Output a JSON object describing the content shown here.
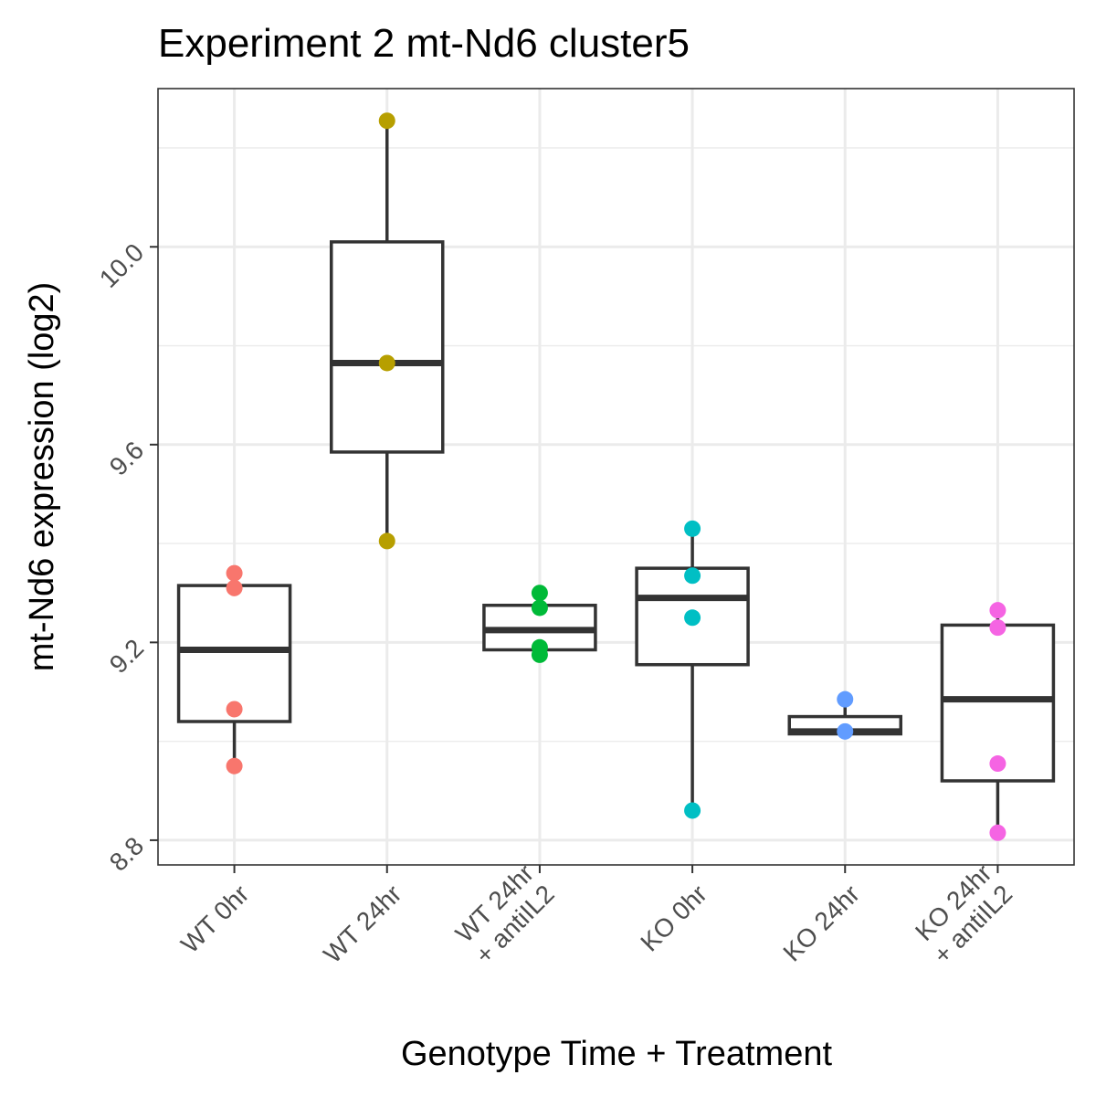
{
  "chart_data": {
    "type": "box",
    "title": "Experiment 2 mt-Nd6 cluster5",
    "xlabel": "Genotype Time + Treatment",
    "ylabel": "mt-Nd6 expression (log2)",
    "ylim": [
      8.75,
      10.32
    ],
    "yticks": [
      "8.8",
      "9.2",
      "9.6",
      "10.0"
    ],
    "ytick_values": [
      8.8,
      9.2,
      9.6,
      10.0
    ],
    "grid": true,
    "categories": [
      {
        "lines": [
          "WT 0hr"
        ],
        "color": "#F8766D",
        "box": {
          "q1": 9.04,
          "median": 9.185,
          "q3": 9.315,
          "whisker_low": 8.95,
          "whisker_high": 9.315
        },
        "points": [
          9.34,
          9.31,
          9.065,
          8.95
        ]
      },
      {
        "lines": [
          "WT 24hr"
        ],
        "color": "#B79F00",
        "box": {
          "q1": 9.585,
          "median": 9.765,
          "q3": 10.01,
          "whisker_low": 9.405,
          "whisker_high": 10.255
        },
        "points": [
          10.255,
          9.765,
          9.405
        ]
      },
      {
        "lines": [
          "WT 24hr",
          "+ antiIL2"
        ],
        "color": "#00BA38",
        "box": {
          "q1": 9.185,
          "median": 9.225,
          "q3": 9.275,
          "whisker_low": 9.175,
          "whisker_high": 9.3
        },
        "points": [
          9.3,
          9.27,
          9.19,
          9.175
        ]
      },
      {
        "lines": [
          "KO 0hr"
        ],
        "color": "#00BFC4",
        "box": {
          "q1": 9.155,
          "median": 9.29,
          "q3": 9.35,
          "whisker_low": 8.86,
          "whisker_high": 9.43
        },
        "points": [
          9.43,
          9.335,
          9.25,
          8.86
        ]
      },
      {
        "lines": [
          "KO 24hr"
        ],
        "color": "#619CFF",
        "box": {
          "q1": 9.015,
          "median": 9.02,
          "q3": 9.05,
          "whisker_low": 9.015,
          "whisker_high": 9.085
        },
        "points": [
          9.085,
          9.02
        ]
      },
      {
        "lines": [
          "KO 24hr",
          "+ antiIL2"
        ],
        "color": "#F564E3",
        "box": {
          "q1": 8.92,
          "median": 9.085,
          "q3": 9.235,
          "whisker_low": 8.815,
          "whisker_high": 9.265
        },
        "points": [
          9.265,
          9.23,
          8.955,
          8.815
        ]
      }
    ]
  }
}
